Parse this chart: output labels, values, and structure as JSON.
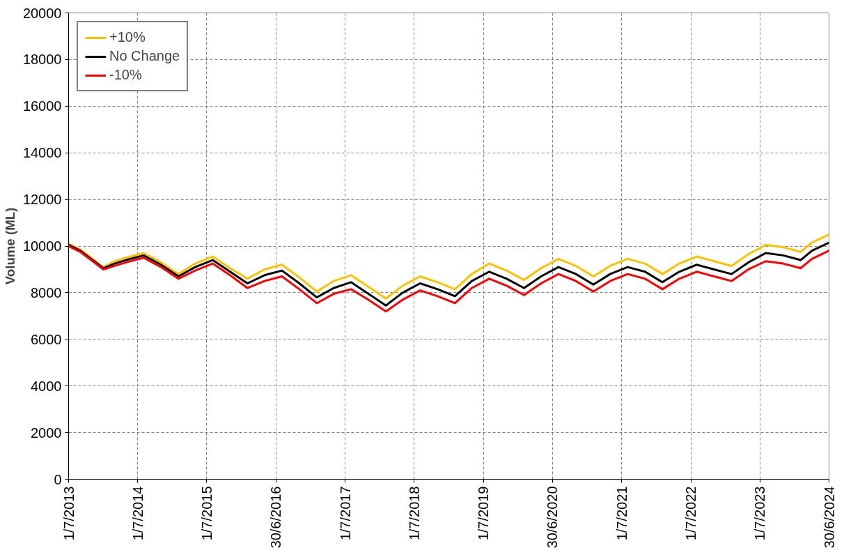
{
  "chart_data": {
    "type": "line",
    "ylabel": "Volume (ML)",
    "x": [
      "2013-07-01",
      "2013-09-01",
      "2014-01-01",
      "2014-03-01",
      "2014-05-01",
      "2014-08-01",
      "2014-11-01",
      "2015-02-01",
      "2015-05-01",
      "2015-08-01",
      "2015-11-01",
      "2016-02-01",
      "2016-05-01",
      "2016-08-01",
      "2016-11-01",
      "2017-02-01",
      "2017-05-01",
      "2017-08-01",
      "2017-11-01",
      "2018-02-01",
      "2018-05-01",
      "2018-08-01",
      "2018-11-01",
      "2019-02-01",
      "2019-05-01",
      "2019-08-01",
      "2019-11-01",
      "2020-02-01",
      "2020-05-01",
      "2020-08-01",
      "2020-11-01",
      "2021-02-01",
      "2021-05-01",
      "2021-08-01",
      "2021-11-01",
      "2022-02-01",
      "2022-05-01",
      "2022-08-01",
      "2022-11-01",
      "2023-02-01",
      "2023-05-01",
      "2023-08-01",
      "2023-11-01",
      "2024-02-01",
      "2024-04-01",
      "2024-06-30"
    ],
    "series": [
      {
        "name": "+10%",
        "color": "#ffc000",
        "values": [
          10100,
          9850,
          9100,
          9350,
          9500,
          9700,
          9300,
          8800,
          9250,
          9550,
          9050,
          8600,
          9000,
          9200,
          8650,
          8050,
          8500,
          8750,
          8250,
          7750,
          8300,
          8700,
          8450,
          8150,
          8800,
          9250,
          8950,
          8550,
          9050,
          9450,
          9150,
          8700,
          9150,
          9450,
          9250,
          8800,
          9250,
          9550,
          9350,
          9150,
          9650,
          10050,
          9950,
          9750,
          10150,
          10500
        ]
      },
      {
        "name": "No Change",
        "color": "#000000",
        "values": [
          10050,
          9800,
          9050,
          9250,
          9400,
          9600,
          9200,
          8700,
          9100,
          9400,
          8900,
          8400,
          8750,
          8950,
          8400,
          7800,
          8200,
          8450,
          7950,
          7450,
          8000,
          8400,
          8150,
          7850,
          8500,
          8900,
          8600,
          8200,
          8700,
          9100,
          8800,
          8350,
          8800,
          9100,
          8900,
          8450,
          8900,
          9200,
          9000,
          8800,
          9300,
          9700,
          9600,
          9400,
          9800,
          10150
        ]
      },
      {
        "name": "-10%",
        "color": "#ff0000",
        "values": [
          10000,
          9750,
          9000,
          9150,
          9300,
          9500,
          9100,
          8600,
          8950,
          9250,
          8750,
          8200,
          8500,
          8700,
          8150,
          7550,
          7950,
          8150,
          7700,
          7200,
          7700,
          8100,
          7850,
          7550,
          8200,
          8600,
          8300,
          7900,
          8400,
          8800,
          8500,
          8050,
          8500,
          8800,
          8600,
          8150,
          8600,
          8900,
          8700,
          8500,
          9000,
          9350,
          9250,
          9050,
          9450,
          9800
        ]
      }
    ],
    "xlim": [
      "2013-07-01",
      "2024-06-30"
    ],
    "xticks": [
      {
        "value": "2013-07-01",
        "label": "1/7/2013"
      },
      {
        "value": "2014-07-01",
        "label": "1/7/2014"
      },
      {
        "value": "2015-07-01",
        "label": "1/7/2015"
      },
      {
        "value": "2016-06-30",
        "label": "30/6/2016"
      },
      {
        "value": "2017-07-01",
        "label": "1/7/2017"
      },
      {
        "value": "2018-07-01",
        "label": "1/7/2018"
      },
      {
        "value": "2019-07-01",
        "label": "1/7/2019"
      },
      {
        "value": "2020-06-30",
        "label": "30/6/2020"
      },
      {
        "value": "2021-07-01",
        "label": "1/7/2021"
      },
      {
        "value": "2022-07-01",
        "label": "1/7/2022"
      },
      {
        "value": "2023-07-01",
        "label": "1/7/2023"
      },
      {
        "value": "2024-06-30",
        "label": "30/6/2024"
      }
    ],
    "ylim": [
      0,
      20000
    ],
    "yticks": [
      0,
      2000,
      4000,
      6000,
      8000,
      10000,
      12000,
      14000,
      16000,
      18000,
      20000
    ],
    "grid": true,
    "legend": "top left",
    "marker": "none",
    "line_style": "solid"
  }
}
